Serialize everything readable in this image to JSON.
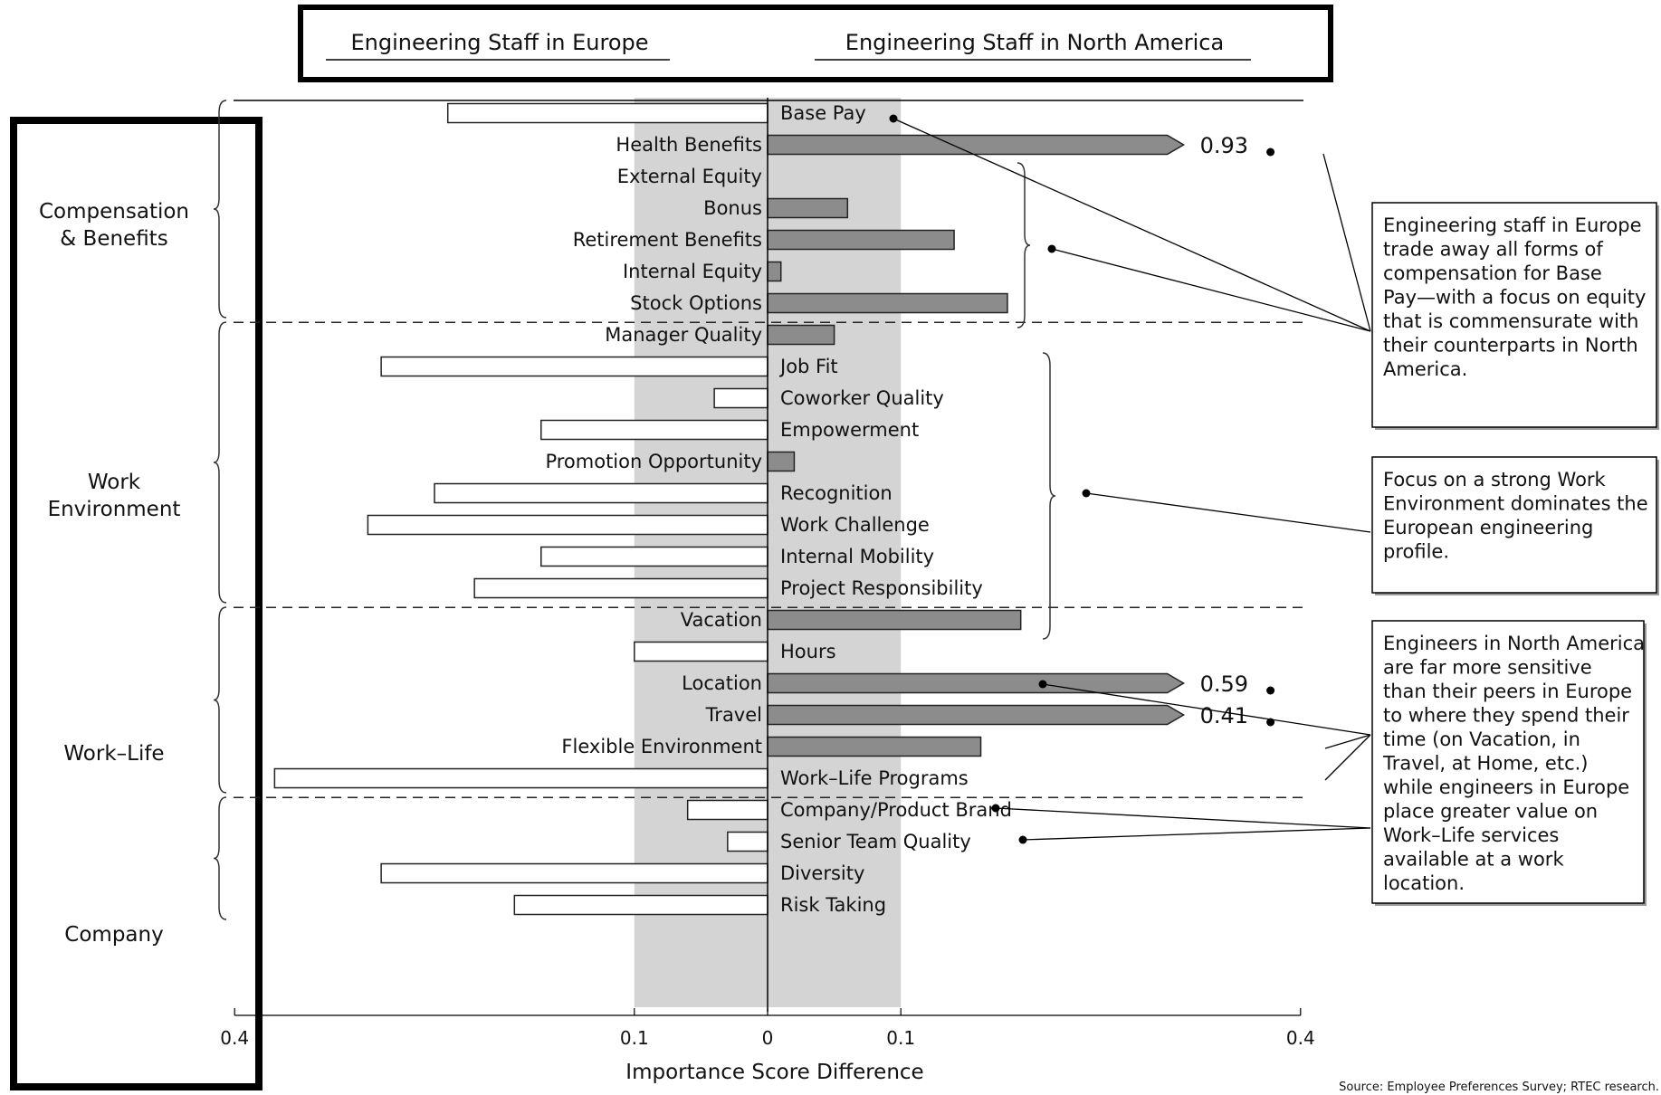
{
  "header": {
    "left": "Engineering Staff in Europe",
    "right": "Engineering Staff in North America"
  },
  "chart_data": {
    "type": "bar",
    "orientation": "horizontal",
    "xlabel": "Importance Score Difference",
    "xticks": [
      "0.4",
      "0.1",
      "0",
      "0.1",
      "0.4"
    ],
    "xlim": [
      -0.4,
      0.4
    ],
    "note": "Negative values extend toward Engineering Staff in Europe; positive values toward Engineering Staff in North America",
    "groups": [
      {
        "name": "Compensation & Benefits",
        "items": [
          {
            "label": "Base Pay",
            "value": -0.24
          },
          {
            "label": "Health Benefits",
            "value": 0.93,
            "value_label": "0.93",
            "truncated": true
          },
          {
            "label": "External Equity",
            "value": 0
          },
          {
            "label": "Bonus",
            "value": 0.06
          },
          {
            "label": "Retirement Benefits",
            "value": 0.14
          },
          {
            "label": "Internal Equity",
            "value": 0.01
          },
          {
            "label": "Stock Options",
            "value": 0.18
          }
        ]
      },
      {
        "name": "Work Environment",
        "items": [
          {
            "label": "Manager Quality",
            "value": 0.05
          },
          {
            "label": "Job Fit",
            "value": -0.29
          },
          {
            "label": "Coworker Quality",
            "value": -0.04
          },
          {
            "label": "Empowerment",
            "value": -0.17
          },
          {
            "label": "Promotion Opportunity",
            "value": 0.02
          },
          {
            "label": "Recognition",
            "value": -0.25
          },
          {
            "label": "Work Challenge",
            "value": -0.3
          },
          {
            "label": "Internal Mobility",
            "value": -0.17
          },
          {
            "label": "Project Responsibility",
            "value": -0.22
          }
        ]
      },
      {
        "name": "Work–Life",
        "items": [
          {
            "label": "Vacation",
            "value": 0.19
          },
          {
            "label": "Hours",
            "value": -0.1
          },
          {
            "label": "Location",
            "value": 0.59,
            "value_label": "0.59",
            "truncated": true
          },
          {
            "label": "Travel",
            "value": 0.41,
            "value_label": "0.41",
            "truncated": true
          },
          {
            "label": "Flexible Environment",
            "value": 0.16
          },
          {
            "label": "Work–Life Programs",
            "value": -0.37
          }
        ]
      },
      {
        "name": "Company",
        "items": [
          {
            "label": "Company/Product Brand",
            "value": -0.06
          },
          {
            "label": "Senior Team Quality",
            "value": -0.03
          },
          {
            "label": "Diversity",
            "value": -0.29
          },
          {
            "label": "Risk Taking",
            "value": -0.19
          }
        ]
      }
    ],
    "shaded_band": [
      -0.1,
      0.1
    ]
  },
  "annotations": [
    "Engineering staff in Europe trade away all forms of compensation for Base Pay—with a focus on equity that is commensurate with their counterparts in North America.",
    "Focus on a strong Work Environment dominates the European engineering profile.",
    "Engineers in North America are far more sensitive than their peers in Europe to where they spend their time (on Vacation, in Travel, at Home, etc.) while engineers in Europe place greater value on Work–Life services available at a work location."
  ],
  "source": "Source: Employee Preferences Survey; RTEC research."
}
